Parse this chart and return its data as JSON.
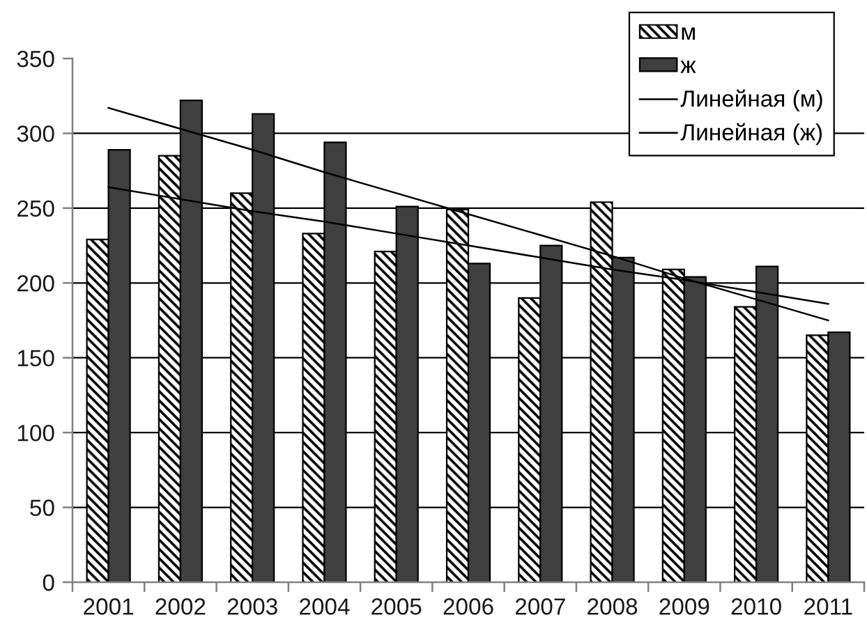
{
  "chart_data": {
    "type": "bar",
    "categories": [
      "2001",
      "2002",
      "2003",
      "2004",
      "2005",
      "2006",
      "2007",
      "2008",
      "2009",
      "2010",
      "2011"
    ],
    "series": [
      {
        "name": "м",
        "color": "#000000",
        "values": [
          229,
          285,
          260,
          233,
          221,
          249,
          190,
          254,
          209,
          184,
          165
        ]
      },
      {
        "name": "ж",
        "color": "#3f3f3f",
        "values": [
          289,
          322,
          313,
          294,
          251,
          213,
          225,
          217,
          204,
          211,
          167
        ]
      },
      {
        "name": "Линейная (м)",
        "type": "line",
        "color": "#000000",
        "values": [
          264,
          256,
          248,
          241,
          233,
          225,
          217,
          209,
          202,
          194,
          186
        ]
      },
      {
        "name": "Линейная (ж)",
        "type": "line",
        "color": "#000000",
        "values": [
          317,
          303,
          289,
          274,
          260,
          246,
          232,
          218,
          203,
          189,
          175
        ]
      }
    ],
    "ylim": [
      0,
      350
    ],
    "yticks": [
      0,
      50,
      100,
      150,
      200,
      250,
      300,
      350
    ],
    "grid": "y",
    "legend": "top right"
  }
}
